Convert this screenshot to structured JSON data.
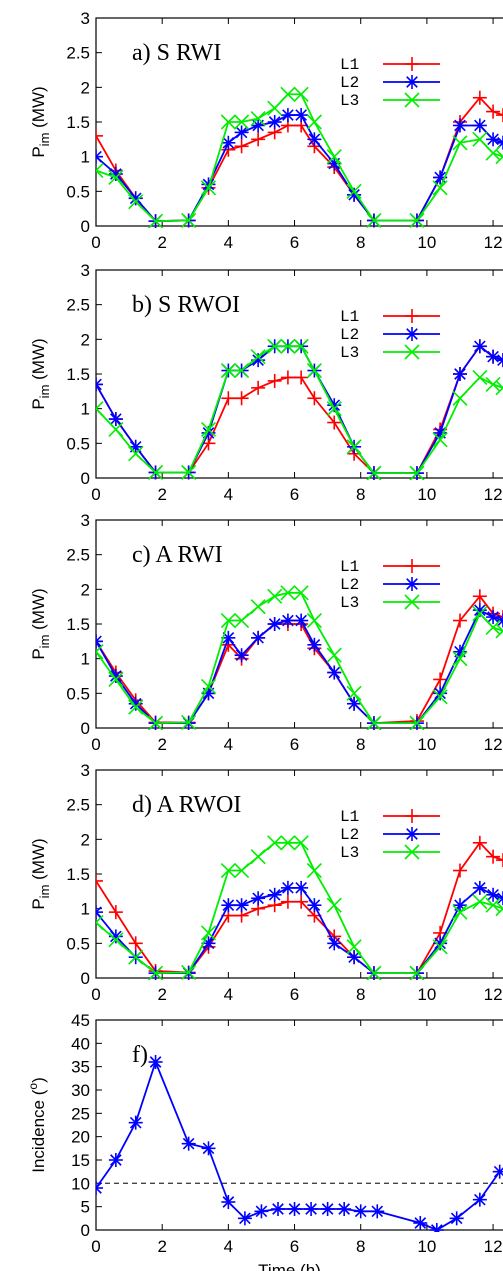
{
  "chart_data": [
    {
      "type": "line",
      "title": "a) S RWI",
      "ylabel": "P_im (MW)",
      "xlim": [
        0,
        12.3
      ],
      "ylim": [
        0,
        3
      ],
      "xticks": [
        "0",
        "2",
        "4",
        "6",
        "8",
        "10",
        "12"
      ],
      "yticks": [
        "0",
        "0.5",
        "1",
        "1.5",
        "2",
        "2.5",
        "3"
      ],
      "legend": "top-right",
      "series": [
        {
          "name": "L1",
          "color": "#ff0000",
          "marker": "plus",
          "x": [
            0,
            0.6,
            1.2,
            1.8,
            2.8,
            3.4,
            4.0,
            4.4,
            4.9,
            5.4,
            5.8,
            6.2,
            6.6,
            7.2,
            7.8,
            8.4,
            9.7,
            10.4,
            11.0,
            11.6,
            12.0,
            12.3
          ],
          "y": [
            1.3,
            0.8,
            0.4,
            0.07,
            0.08,
            0.55,
            1.1,
            1.15,
            1.25,
            1.35,
            1.45,
            1.45,
            1.15,
            0.85,
            0.45,
            0.08,
            0.08,
            0.7,
            1.5,
            1.85,
            1.65,
            1.6
          ]
        },
        {
          "name": "L2",
          "color": "#0000ff",
          "marker": "star",
          "x": [
            0,
            0.6,
            1.2,
            1.8,
            2.8,
            3.4,
            4.0,
            4.4,
            4.9,
            5.4,
            5.8,
            6.2,
            6.6,
            7.2,
            7.8,
            8.4,
            9.7,
            10.4,
            11.0,
            11.6,
            12.0,
            12.3
          ],
          "y": [
            1.0,
            0.75,
            0.4,
            0.07,
            0.08,
            0.6,
            1.2,
            1.35,
            1.45,
            1.5,
            1.6,
            1.6,
            1.25,
            0.9,
            0.45,
            0.08,
            0.08,
            0.7,
            1.45,
            1.45,
            1.25,
            1.2
          ]
        },
        {
          "name": "L3",
          "color": "#00ee00",
          "marker": "cross",
          "x": [
            0,
            0.6,
            1.2,
            1.8,
            2.8,
            3.4,
            4.0,
            4.4,
            4.9,
            5.4,
            5.8,
            6.2,
            6.6,
            7.2,
            7.8,
            8.4,
            9.7,
            10.4,
            11.0,
            11.6,
            12.0,
            12.3
          ],
          "y": [
            0.8,
            0.7,
            0.35,
            0.07,
            0.08,
            0.55,
            1.5,
            1.5,
            1.55,
            1.7,
            1.9,
            1.9,
            1.5,
            1.0,
            0.5,
            0.08,
            0.08,
            0.55,
            1.2,
            1.25,
            1.05,
            1.0
          ]
        }
      ]
    },
    {
      "type": "line",
      "title": "b) S RWOI",
      "ylabel": "P_im (MW)",
      "xlim": [
        0,
        12.3
      ],
      "ylim": [
        0,
        3
      ],
      "xticks": [
        "0",
        "2",
        "4",
        "6",
        "8",
        "10",
        "12"
      ],
      "yticks": [
        "0",
        "0.5",
        "1",
        "1.5",
        "2",
        "2.5",
        "3"
      ],
      "legend": "top-right",
      "series": [
        {
          "name": "L1",
          "color": "#ff0000",
          "marker": "plus",
          "x": [
            0,
            0.6,
            1.2,
            1.8,
            2.8,
            3.4,
            4.0,
            4.4,
            4.9,
            5.4,
            5.8,
            6.2,
            6.6,
            7.2,
            7.8,
            8.4,
            9.7,
            10.4,
            11.0,
            11.6,
            12.0,
            12.3
          ],
          "y": [
            1.35,
            0.85,
            0.45,
            0.08,
            0.08,
            0.5,
            1.15,
            1.15,
            1.3,
            1.4,
            1.45,
            1.45,
            1.15,
            0.8,
            0.35,
            0.07,
            0.07,
            0.7,
            1.5,
            1.9,
            1.75,
            1.7
          ]
        },
        {
          "name": "L2",
          "color": "#0000ff",
          "marker": "star",
          "x": [
            0,
            0.6,
            1.2,
            1.8,
            2.8,
            3.4,
            4.0,
            4.4,
            4.9,
            5.4,
            5.8,
            6.2,
            6.6,
            7.2,
            7.8,
            8.4,
            9.7,
            10.4,
            11.0,
            11.6,
            12.0,
            12.3
          ],
          "y": [
            1.35,
            0.85,
            0.45,
            0.08,
            0.08,
            0.65,
            1.55,
            1.55,
            1.7,
            1.9,
            1.9,
            1.9,
            1.55,
            1.05,
            0.45,
            0.07,
            0.07,
            0.65,
            1.5,
            1.9,
            1.75,
            1.7
          ]
        },
        {
          "name": "L3",
          "color": "#00ee00",
          "marker": "cross",
          "x": [
            0,
            0.6,
            1.2,
            1.8,
            2.8,
            3.4,
            4.0,
            4.4,
            4.9,
            5.4,
            5.8,
            6.2,
            6.6,
            7.2,
            7.8,
            8.4,
            9.7,
            10.4,
            11.0,
            11.6,
            12.0,
            12.3
          ],
          "y": [
            1.0,
            0.7,
            0.35,
            0.08,
            0.08,
            0.7,
            1.55,
            1.55,
            1.75,
            1.9,
            1.9,
            1.9,
            1.55,
            1.0,
            0.45,
            0.07,
            0.07,
            0.55,
            1.15,
            1.45,
            1.35,
            1.3
          ]
        }
      ]
    },
    {
      "type": "line",
      "title": "c) A RWI",
      "ylabel": "P_im (MW)",
      "xlim": [
        0,
        12.3
      ],
      "ylim": [
        0,
        3
      ],
      "xticks": [
        "0",
        "2",
        "4",
        "6",
        "8",
        "10",
        "12"
      ],
      "yticks": [
        "0",
        "0.5",
        "1",
        "1.5",
        "2",
        "2.5",
        "3"
      ],
      "legend": "top-right",
      "series": [
        {
          "name": "L1",
          "color": "#ff0000",
          "marker": "plus",
          "x": [
            0,
            0.6,
            1.2,
            1.8,
            2.8,
            3.4,
            4.0,
            4.4,
            4.9,
            5.4,
            5.8,
            6.2,
            6.6,
            7.2,
            7.8,
            8.4,
            9.7,
            10.4,
            11.0,
            11.6,
            12.0,
            12.3
          ],
          "y": [
            1.25,
            0.8,
            0.4,
            0.08,
            0.08,
            0.5,
            1.2,
            1.0,
            1.3,
            1.5,
            1.5,
            1.5,
            1.15,
            0.8,
            0.35,
            0.07,
            0.1,
            0.7,
            1.55,
            1.9,
            1.65,
            1.6
          ]
        },
        {
          "name": "L2",
          "color": "#0000ff",
          "marker": "star",
          "x": [
            0,
            0.6,
            1.2,
            1.8,
            2.8,
            3.4,
            4.0,
            4.4,
            4.9,
            5.4,
            5.8,
            6.2,
            6.6,
            7.2,
            7.8,
            8.4,
            9.7,
            10.4,
            11.0,
            11.6,
            12.0,
            12.3
          ],
          "y": [
            1.25,
            0.75,
            0.35,
            0.07,
            0.07,
            0.5,
            1.3,
            1.05,
            1.3,
            1.5,
            1.55,
            1.55,
            1.2,
            0.8,
            0.35,
            0.07,
            0.07,
            0.5,
            1.1,
            1.7,
            1.6,
            1.55
          ]
        },
        {
          "name": "L3",
          "color": "#00ee00",
          "marker": "cross",
          "x": [
            0,
            0.6,
            1.2,
            1.8,
            2.8,
            3.4,
            4.0,
            4.4,
            4.9,
            5.4,
            5.8,
            6.2,
            6.6,
            7.2,
            7.8,
            8.4,
            9.7,
            10.4,
            11.0,
            11.6,
            12.0,
            12.3
          ],
          "y": [
            1.1,
            0.7,
            0.3,
            0.07,
            0.08,
            0.6,
            1.55,
            1.55,
            1.75,
            1.9,
            1.95,
            1.95,
            1.55,
            1.05,
            0.5,
            0.07,
            0.07,
            0.45,
            1.0,
            1.65,
            1.45,
            1.4
          ]
        }
      ]
    },
    {
      "type": "line",
      "title": "d) A RWOI",
      "ylabel": "P_im (MW)",
      "xlim": [
        0,
        12.3
      ],
      "ylim": [
        0,
        3
      ],
      "xticks": [
        "0",
        "2",
        "4",
        "6",
        "8",
        "10",
        "12"
      ],
      "yticks": [
        "0",
        "0.5",
        "1",
        "1.5",
        "2",
        "2.5",
        "3"
      ],
      "legend": "top-right",
      "series": [
        {
          "name": "L1",
          "color": "#ff0000",
          "marker": "plus",
          "x": [
            0,
            0.6,
            1.2,
            1.8,
            2.8,
            3.4,
            4.0,
            4.4,
            4.9,
            5.4,
            5.8,
            6.2,
            6.6,
            7.2,
            7.8,
            8.4,
            9.7,
            10.4,
            11.0,
            11.6,
            12.0,
            12.3
          ],
          "y": [
            1.4,
            0.95,
            0.5,
            0.1,
            0.08,
            0.45,
            0.9,
            0.9,
            1.0,
            1.05,
            1.1,
            1.1,
            0.9,
            0.6,
            0.3,
            0.07,
            0.07,
            0.65,
            1.55,
            1.95,
            1.75,
            1.7
          ]
        },
        {
          "name": "L2",
          "color": "#0000ff",
          "marker": "star",
          "x": [
            0,
            0.6,
            1.2,
            1.8,
            2.8,
            3.4,
            4.0,
            4.4,
            4.9,
            5.4,
            5.8,
            6.2,
            6.6,
            7.2,
            7.8,
            8.4,
            9.7,
            10.4,
            11.0,
            11.6,
            12.0,
            12.3
          ],
          "y": [
            0.95,
            0.6,
            0.3,
            0.07,
            0.07,
            0.5,
            1.05,
            1.05,
            1.15,
            1.2,
            1.3,
            1.3,
            1.05,
            0.5,
            0.3,
            0.07,
            0.07,
            0.5,
            1.05,
            1.3,
            1.2,
            1.15
          ]
        },
        {
          "name": "L3",
          "color": "#00ee00",
          "marker": "cross",
          "x": [
            0,
            0.6,
            1.2,
            1.8,
            2.8,
            3.4,
            4.0,
            4.4,
            4.9,
            5.4,
            5.8,
            6.2,
            6.6,
            7.2,
            7.8,
            8.4,
            9.7,
            10.4,
            11.0,
            11.6,
            12.0,
            12.3
          ],
          "y": [
            0.8,
            0.55,
            0.3,
            0.07,
            0.08,
            0.65,
            1.55,
            1.55,
            1.75,
            1.95,
            1.95,
            1.95,
            1.55,
            1.05,
            0.45,
            0.07,
            0.07,
            0.45,
            0.95,
            1.1,
            1.05,
            1.0
          ]
        }
      ]
    },
    {
      "type": "line",
      "title": "f)",
      "ylabel": "Incidence (°)",
      "xlabel": "Time (h)",
      "xlim": [
        0,
        12.3
      ],
      "ylim": [
        0,
        45
      ],
      "xticks": [
        "0",
        "2",
        "4",
        "6",
        "8",
        "10",
        "12"
      ],
      "yticks": [
        "0",
        "5",
        "10",
        "15",
        "20",
        "25",
        "30",
        "35",
        "40",
        "45"
      ],
      "reference_line": {
        "y": 10,
        "style": "dashed"
      },
      "series": [
        {
          "name": "",
          "color": "#0000ff",
          "marker": "star",
          "x": [
            0,
            0.6,
            1.2,
            1.8,
            2.8,
            3.4,
            4.0,
            4.5,
            5.0,
            5.5,
            6.0,
            6.5,
            7.0,
            7.5,
            8.0,
            8.5,
            9.8,
            10.3,
            10.9,
            11.6,
            12.2
          ],
          "y": [
            9,
            15,
            23,
            36,
            18.5,
            17.5,
            6,
            2.5,
            4,
            4.5,
            4.5,
            4.5,
            4.5,
            4.5,
            4,
            4,
            1.5,
            0,
            2.5,
            6.5,
            12.5
          ]
        }
      ]
    }
  ]
}
